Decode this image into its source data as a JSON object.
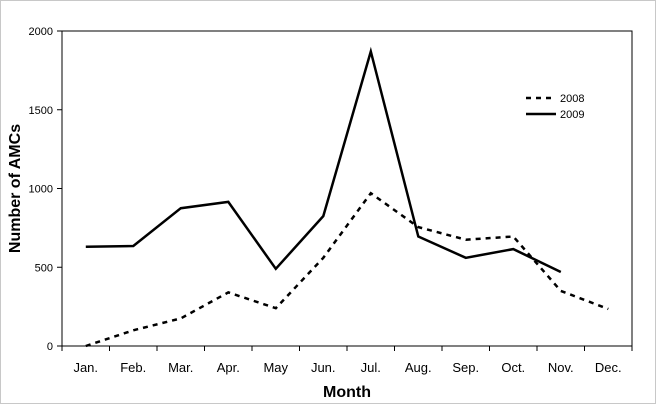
{
  "chart_data": {
    "type": "line",
    "categories": [
      "Jan.",
      "Feb.",
      "Mar.",
      "Apr.",
      "May",
      "Jun.",
      "Jul.",
      "Aug.",
      "Sep.",
      "Oct.",
      "Nov.",
      "Dec."
    ],
    "xlabel": "Month",
    "ylabel": "Number of AMCs",
    "ylim": [
      0,
      2000
    ],
    "yticks": [
      "0",
      "500",
      "1000",
      "1500",
      "2000"
    ],
    "ytick_values": [
      0,
      500,
      1000,
      1500,
      2000
    ],
    "grid": false,
    "legend_position": "top-right",
    "series": [
      {
        "name": "2008",
        "style": "dashed",
        "color": "#000000",
        "values": [
          0,
          100,
          175,
          340,
          240,
          560,
          970,
          755,
          675,
          695,
          350,
          235
        ]
      },
      {
        "name": "2009",
        "style": "solid",
        "color": "#000000",
        "values": [
          630,
          635,
          875,
          915,
          490,
          825,
          1870,
          695,
          560,
          615,
          470,
          null
        ]
      }
    ]
  }
}
